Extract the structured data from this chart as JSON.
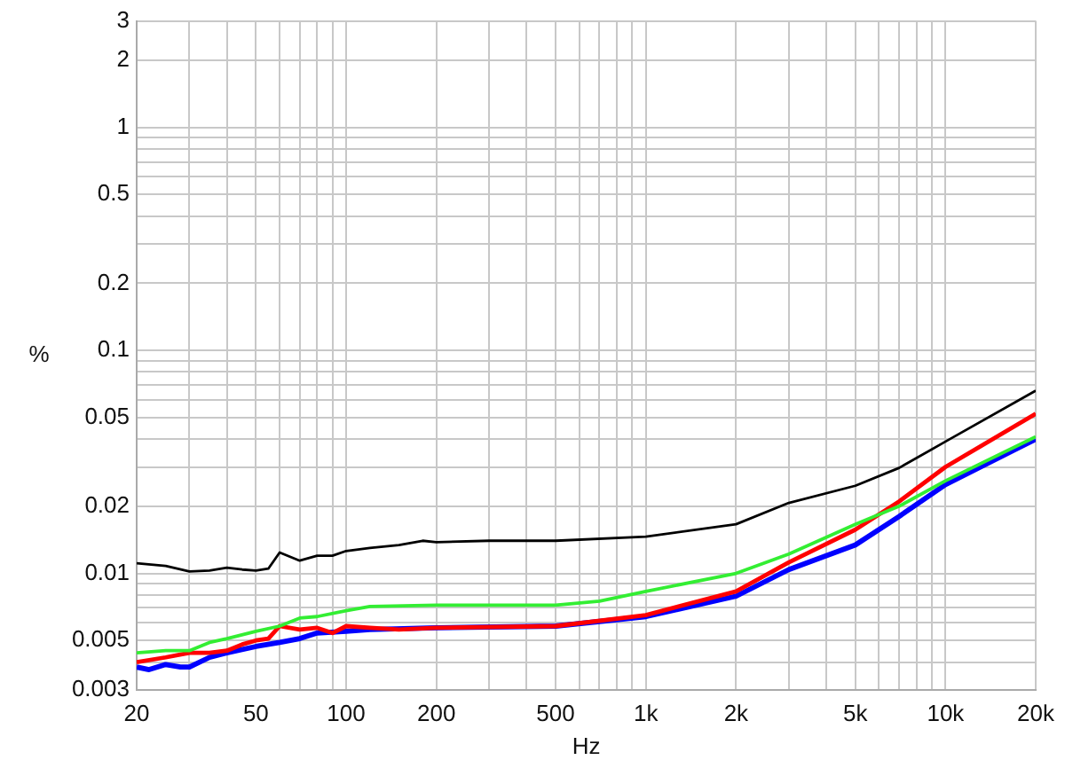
{
  "chart_data": {
    "type": "line",
    "xlabel": "Hz",
    "ylabel": "%",
    "log": "xy",
    "grid": true,
    "legend": false,
    "marker": "none",
    "line_style": "solid",
    "xlim": [
      20,
      20000
    ],
    "ylim": [
      0.003,
      3
    ],
    "xticks": [
      20,
      {
        "value": 30,
        "label": null
      },
      {
        "value": 40,
        "label": null
      },
      50,
      {
        "value": 60,
        "label": null
      },
      {
        "value": 70,
        "label": null
      },
      {
        "value": 80,
        "label": null
      },
      {
        "value": 90,
        "label": null
      },
      100,
      200,
      {
        "value": 300,
        "label": null
      },
      {
        "value": 400,
        "label": null
      },
      500,
      {
        "value": 600,
        "label": null
      },
      {
        "value": 700,
        "label": null
      },
      {
        "value": 800,
        "label": null
      },
      {
        "value": 900,
        "label": null
      },
      {
        "value": 1000,
        "label": "1k"
      },
      {
        "value": 2000,
        "label": "2k"
      },
      {
        "value": 3000,
        "label": null
      },
      {
        "value": 4000,
        "label": null
      },
      {
        "value": 5000,
        "label": "5k"
      },
      {
        "value": 6000,
        "label": null
      },
      {
        "value": 7000,
        "label": null
      },
      {
        "value": 8000,
        "label": null
      },
      {
        "value": 9000,
        "label": null
      },
      {
        "value": 10000,
        "label": "10k"
      },
      {
        "value": 20000,
        "label": "20k"
      }
    ],
    "yticks": [
      0.003,
      {
        "value": 0.004,
        "label": null
      },
      0.005,
      {
        "value": 0.006,
        "label": null
      },
      {
        "value": 0.007,
        "label": null
      },
      {
        "value": 0.008,
        "label": null
      },
      {
        "value": 0.009,
        "label": null
      },
      0.01,
      0.02,
      {
        "value": 0.03,
        "label": null
      },
      {
        "value": 0.04,
        "label": null
      },
      0.05,
      {
        "value": 0.06,
        "label": null
      },
      {
        "value": 0.07,
        "label": null
      },
      {
        "value": 0.08,
        "label": null
      },
      {
        "value": 0.09,
        "label": null
      },
      0.1,
      0.2,
      {
        "value": 0.3,
        "label": null
      },
      {
        "value": 0.4,
        "label": null
      },
      0.5,
      {
        "value": 0.6,
        "label": null
      },
      {
        "value": 0.7,
        "label": null
      },
      {
        "value": 0.8,
        "label": null
      },
      {
        "value": 0.9,
        "label": null
      },
      1,
      2,
      3
    ],
    "series": [
      {
        "color": "#000000",
        "x": [
          20,
          25,
          30,
          35,
          40,
          45,
          50,
          55,
          60,
          70,
          80,
          90,
          100,
          120,
          150,
          180,
          200,
          300,
          500,
          1000,
          2000,
          3000,
          5000,
          7000,
          10000,
          20000
        ],
        "values": [
          0.0111,
          0.0108,
          0.0102,
          0.0103,
          0.0106,
          0.0104,
          0.0103,
          0.0105,
          0.0124,
          0.0114,
          0.012,
          0.012,
          0.0126,
          0.013,
          0.0134,
          0.014,
          0.0138,
          0.014,
          0.014,
          0.0146,
          0.0166,
          0.0207,
          0.0247,
          0.0297,
          0.039,
          0.066
        ]
      },
      {
        "color": "#33ee33",
        "x": [
          20,
          25,
          30,
          35,
          40,
          50,
          60,
          70,
          80,
          100,
          120,
          200,
          500,
          700,
          1000,
          2000,
          3000,
          5000,
          7000,
          10000,
          20000
        ],
        "values": [
          0.0044,
          0.0045,
          0.0045,
          0.0049,
          0.0051,
          0.0055,
          0.0058,
          0.0063,
          0.0064,
          0.0068,
          0.0071,
          0.0072,
          0.0072,
          0.0075,
          0.0083,
          0.01,
          0.0122,
          0.0166,
          0.02,
          0.026,
          0.041
        ]
      },
      {
        "color": "#ff0000",
        "x": [
          20,
          25,
          30,
          35,
          40,
          45,
          50,
          55,
          60,
          70,
          80,
          90,
          100,
          120,
          150,
          200,
          500,
          1000,
          2000,
          3000,
          5000,
          7000,
          10000,
          20000
        ],
        "values": [
          0.004,
          0.0042,
          0.0044,
          0.0044,
          0.0045,
          0.0048,
          0.005,
          0.0051,
          0.0058,
          0.0056,
          0.0057,
          0.0054,
          0.0058,
          0.0057,
          0.0056,
          0.0057,
          0.0058,
          0.0065,
          0.0083,
          0.0112,
          0.0157,
          0.021,
          0.03,
          0.052
        ]
      },
      {
        "color": "#0000ff",
        "x": [
          20,
          22,
          25,
          28,
          30,
          35,
          40,
          50,
          60,
          70,
          80,
          100,
          120,
          200,
          500,
          1000,
          2000,
          3000,
          5000,
          7000,
          10000,
          20000
        ],
        "values": [
          0.0038,
          0.0037,
          0.0039,
          0.0038,
          0.0038,
          0.0042,
          0.0044,
          0.0047,
          0.0049,
          0.0051,
          0.0054,
          0.0055,
          0.0056,
          0.0057,
          0.0058,
          0.0064,
          0.0079,
          0.0104,
          0.0134,
          0.018,
          0.025,
          0.04
        ]
      }
    ]
  }
}
